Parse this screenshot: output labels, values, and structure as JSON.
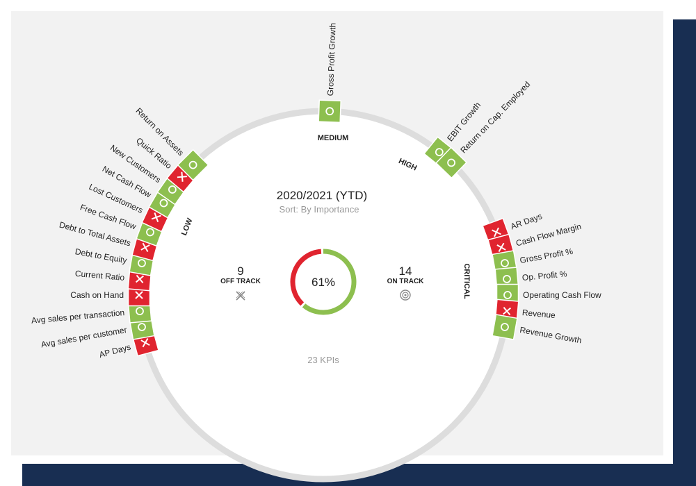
{
  "title": "2020/2021 (YTD)",
  "sort_label": "Sort: By Importance",
  "off_track": {
    "count": "9",
    "label": "OFF TRACK"
  },
  "on_track": {
    "count": "14",
    "label": "ON TRACK"
  },
  "percent": "61%",
  "on_track_fraction": 0.61,
  "kpi_total": "23 KPIs",
  "groups": {
    "low": "LOW",
    "medium": "MEDIUM",
    "high": "HIGH",
    "critical": "CRITICAL"
  },
  "colors": {
    "on": "#8dbf4f",
    "off": "#e0242f",
    "ring": "#dddddd",
    "background": "#f2f2f2",
    "navy": "#182e52"
  },
  "kpis": [
    {
      "label": "AP Days",
      "status": "off",
      "group": "low"
    },
    {
      "label": "Avg sales per customer",
      "status": "on",
      "group": "low"
    },
    {
      "label": "Avg sales per transaction",
      "status": "on",
      "group": "low"
    },
    {
      "label": "Cash on Hand",
      "status": "off",
      "group": "low"
    },
    {
      "label": "Current Ratio",
      "status": "off",
      "group": "low"
    },
    {
      "label": "Debt to Equity",
      "status": "on",
      "group": "low"
    },
    {
      "label": "Debt to Total Assets",
      "status": "off",
      "group": "low"
    },
    {
      "label": "Free Cash Flow",
      "status": "on",
      "group": "low"
    },
    {
      "label": "Lost Customers",
      "status": "off",
      "group": "low"
    },
    {
      "label": "Net Cash Flow",
      "status": "on",
      "group": "low"
    },
    {
      "label": "New Customers",
      "status": "on",
      "group": "low"
    },
    {
      "label": "Quick Ratio",
      "status": "off",
      "group": "low"
    },
    {
      "label": "Return on Assets",
      "status": "on",
      "group": "low"
    },
    {
      "label": "Gross Profit Growth",
      "status": "on",
      "group": "medium"
    },
    {
      "label": "EBIT Growth",
      "status": "on",
      "group": "high"
    },
    {
      "label": "Return on Cap. Employed",
      "status": "on",
      "group": "high"
    },
    {
      "label": "AR Days",
      "status": "off",
      "group": "critical"
    },
    {
      "label": "Cash Flow Margin",
      "status": "off",
      "group": "critical"
    },
    {
      "label": "Gross Profit %",
      "status": "on",
      "group": "critical"
    },
    {
      "label": "Op. Profit %",
      "status": "on",
      "group": "critical"
    },
    {
      "label": "Operating Cash Flow",
      "status": "on",
      "group": "critical"
    },
    {
      "label": "Revenue",
      "status": "off",
      "group": "critical"
    },
    {
      "label": "Revenue Growth",
      "status": "on",
      "group": "critical"
    }
  ]
}
